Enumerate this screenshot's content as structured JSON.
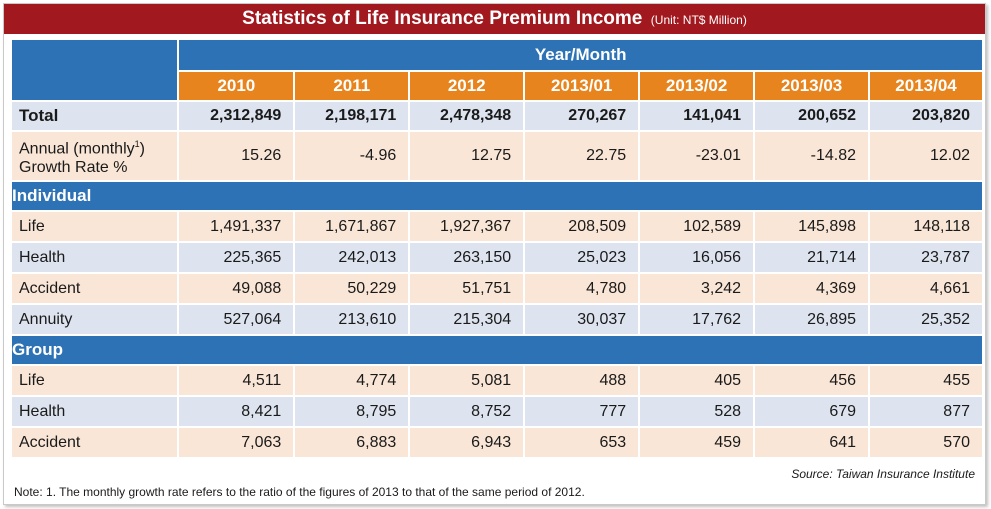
{
  "title": {
    "main": "Statistics of Life Insurance Premium Income",
    "unit": "(Unit: NT$ Million)"
  },
  "header": {
    "year_month": "Year/Month",
    "periods": [
      "2010",
      "2011",
      "2012",
      "2013/01",
      "2013/02",
      "2013/03",
      "2013/04"
    ]
  },
  "total": {
    "label": "Total",
    "values": [
      "2,312,849",
      "2,198,171",
      "2,478,348",
      "270,267",
      "141,041",
      "200,652",
      "203,820"
    ]
  },
  "growth": {
    "label_part1": "Annual (monthly",
    "label_sup": "1",
    "label_part2": ")",
    "label_line2": "Growth Rate %",
    "values": [
      "15.26",
      "-4.96",
      "12.75",
      "22.75",
      "-23.01",
      "-14.82",
      "12.02"
    ]
  },
  "individual": {
    "label": "Individual",
    "rows": [
      {
        "label": "Life",
        "values": [
          "1,491,337",
          "1,671,867",
          "1,927,367",
          "208,509",
          "102,589",
          "145,898",
          "148,118"
        ]
      },
      {
        "label": "Health",
        "values": [
          "225,365",
          "242,013",
          "263,150",
          "25,023",
          "16,056",
          "21,714",
          "23,787"
        ]
      },
      {
        "label": "Accident",
        "values": [
          "49,088",
          "50,229",
          "51,751",
          "4,780",
          "3,242",
          "4,369",
          "4,661"
        ]
      },
      {
        "label": "Annuity",
        "values": [
          "527,064",
          "213,610",
          "215,304",
          "30,037",
          "17,762",
          "26,895",
          "25,352"
        ]
      }
    ]
  },
  "group": {
    "label": "Group",
    "rows": [
      {
        "label": "Life",
        "values": [
          "4,511",
          "4,774",
          "5,081",
          "488",
          "405",
          "456",
          "455"
        ]
      },
      {
        "label": "Health",
        "values": [
          "8,421",
          "8,795",
          "8,752",
          "777",
          "528",
          "679",
          "877"
        ]
      },
      {
        "label": "Accident",
        "values": [
          "7,063",
          "6,883",
          "6,943",
          "653",
          "459",
          "641",
          "570"
        ]
      }
    ]
  },
  "source": "Source: Taiwan Insurance Institute",
  "note": "Note: 1. The monthly growth rate refers to the ratio of the figures of 2013 to that of the same period of 2012.",
  "colors": {
    "title_bar": "#a1191f",
    "header_blue": "#2d72b5",
    "header_orange": "#e8841d",
    "row_blue": "#dde4ef",
    "row_peach": "#f9e6d6"
  }
}
